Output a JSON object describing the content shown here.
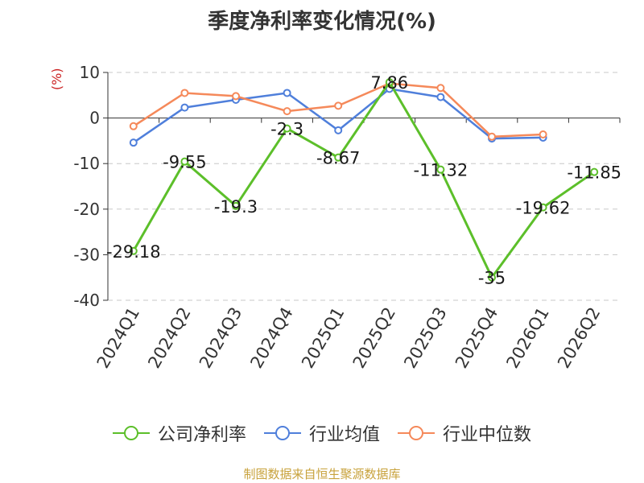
{
  "chart_data": {
    "type": "line",
    "title": "季度净利率变化情况(%)",
    "ylabel": "(%)",
    "xlabel": "",
    "categories": [
      "2024Q1",
      "2024Q2",
      "2024Q3",
      "2024Q4",
      "2025Q1",
      "2025Q2",
      "2025Q3",
      "2025Q4",
      "2026Q1",
      "2026Q2"
    ],
    "ylim": [
      -40,
      10
    ],
    "yticks": [
      10,
      0,
      -10,
      -20,
      -30,
      -40
    ],
    "grid": true,
    "legend_position": "bottom",
    "series": [
      {
        "name": "公司净利率",
        "color": "#5cbf2a",
        "values": [
          -29.18,
          -9.55,
          -19.3,
          -2.3,
          -8.67,
          7.86,
          -11.32,
          -35,
          -19.62,
          -11.85
        ],
        "labels": [
          "-29.18",
          "-9.55",
          "-19.3",
          "-2.3",
          "-8.67",
          "7.86",
          "-11.32",
          "-35",
          "-19.62",
          "-11.85"
        ]
      },
      {
        "name": "行业均值",
        "color": "#4f7fdb",
        "values": [
          -5.4,
          2.3,
          4.0,
          5.5,
          -2.7,
          6.4,
          4.6,
          -4.5,
          -4.3,
          null
        ]
      },
      {
        "name": "行业中位数",
        "color": "#f5895a",
        "values": [
          -1.8,
          5.5,
          4.8,
          1.5,
          2.7,
          7.6,
          6.6,
          -4.1,
          -3.6,
          null
        ]
      }
    ]
  },
  "source": {
    "text": "制图数据来自恒生聚源数据库",
    "color": "#c8a23c"
  }
}
